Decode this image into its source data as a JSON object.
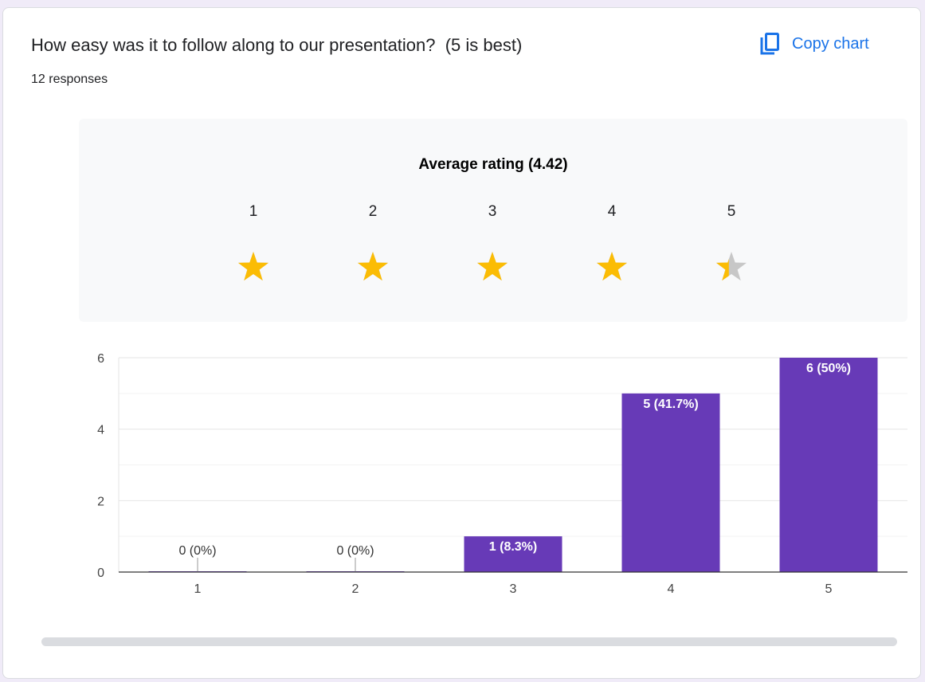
{
  "question": {
    "title": "How easy was it to follow along to our presentation?  (5 is best)",
    "responses": "12 responses"
  },
  "toolbar": {
    "copy_label": "Copy chart",
    "copy_icon": "content-copy-icon",
    "accent_color": "#1a73e8"
  },
  "rating": {
    "title": "Average rating (4.42)",
    "average": 4.42,
    "scale": [
      "1",
      "2",
      "3",
      "4",
      "5"
    ],
    "star_color": "#fbbc04",
    "star_empty_color": "#c7c7c7"
  },
  "chart_data": {
    "type": "bar",
    "categories": [
      "1",
      "2",
      "3",
      "4",
      "5"
    ],
    "values": [
      0,
      0,
      1,
      5,
      6
    ],
    "data_labels": [
      "0 (0%)",
      "0 (0%)",
      "1 (8.3%)",
      "5 (41.7%)",
      "6 (50%)"
    ],
    "yticks": [
      "0",
      "2",
      "4",
      "6"
    ],
    "ylim": [
      0,
      6
    ],
    "grid": true,
    "bar_color": "#673ab7"
  }
}
